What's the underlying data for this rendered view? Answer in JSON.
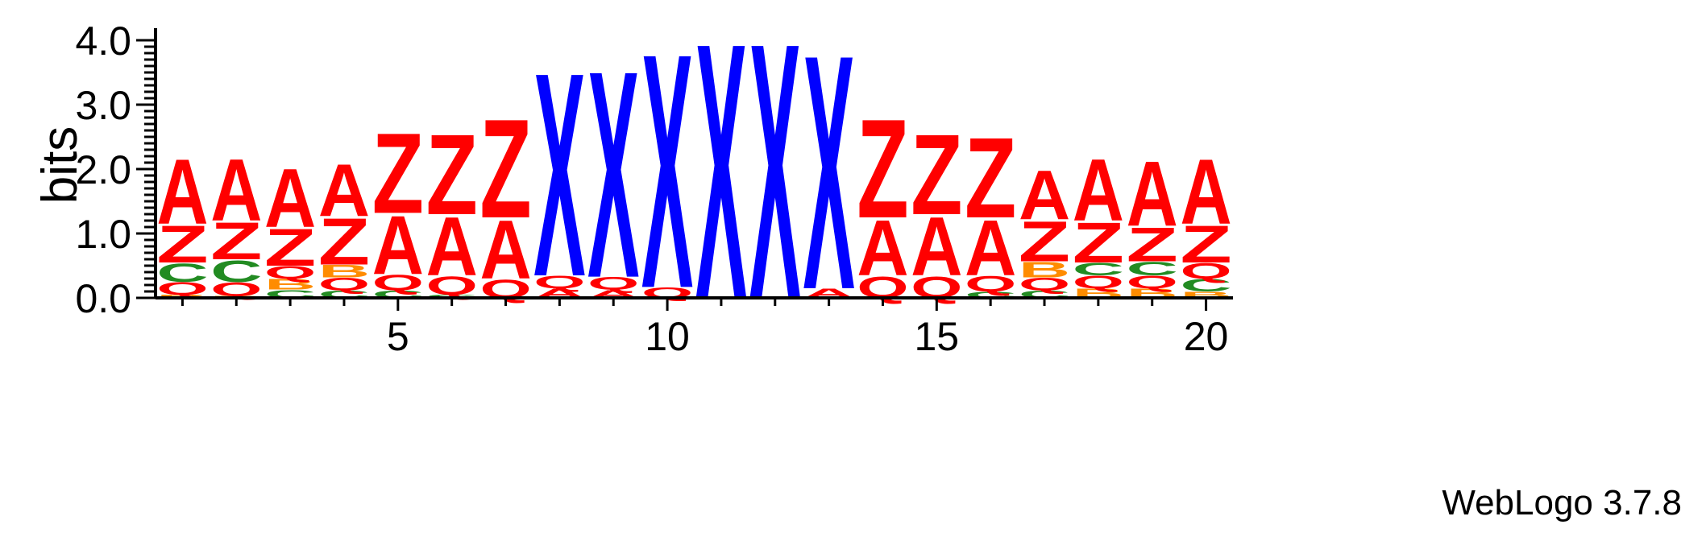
{
  "chart_data": {
    "type": "sequence-logo",
    "ylabel": "bits",
    "ylim": [
      0,
      4.0
    ],
    "y_ticks": [
      "0.0",
      "1.0",
      "2.0",
      "3.0",
      "4.0"
    ],
    "x_ticks": [
      "5",
      "10",
      "15",
      "20"
    ],
    "x_tick_values": [
      5,
      10,
      15,
      20
    ],
    "colors": {
      "A": "#ff0000",
      "Z": "#ff0000",
      "Q": "#ff0000",
      "X": "#0000ff",
      "C": "#228b22",
      "B": "#ff8c00"
    },
    "positions": [
      {
        "pos": 1,
        "stack": [
          [
            "B",
            0.05
          ],
          [
            "Q",
            0.2
          ],
          [
            "C",
            0.3
          ],
          [
            "Z",
            0.6
          ],
          [
            "A",
            1.05
          ]
        ]
      },
      {
        "pos": 2,
        "stack": [
          [
            "B",
            0.03
          ],
          [
            "Q",
            0.22
          ],
          [
            "C",
            0.35
          ],
          [
            "Z",
            0.6
          ],
          [
            "A",
            1.0
          ]
        ]
      },
      {
        "pos": 3,
        "stack": [
          [
            "C",
            0.13
          ],
          [
            "B",
            0.17
          ],
          [
            "Q",
            0.2
          ],
          [
            "Z",
            0.6
          ],
          [
            "A",
            0.95
          ]
        ]
      },
      {
        "pos": 4,
        "stack": [
          [
            "C",
            0.12
          ],
          [
            "Q",
            0.2
          ],
          [
            "B",
            0.2
          ],
          [
            "Z",
            0.75
          ],
          [
            "A",
            0.85
          ]
        ]
      },
      {
        "pos": 5,
        "stack": [
          [
            "C",
            0.12
          ],
          [
            "Q",
            0.25
          ],
          [
            "A",
            0.95
          ],
          [
            "Z",
            1.3
          ]
        ]
      },
      {
        "pos": 6,
        "stack": [
          [
            "C",
            0.05
          ],
          [
            "Q",
            0.3
          ],
          [
            "A",
            0.95
          ],
          [
            "Z",
            1.3
          ]
        ]
      },
      {
        "pos": 7,
        "stack": [
          [
            "Q",
            0.3
          ],
          [
            "A",
            0.95
          ],
          [
            "Z",
            1.6
          ]
        ]
      },
      {
        "pos": 8,
        "stack": [
          [
            "A",
            0.15
          ],
          [
            "Q",
            0.2
          ],
          [
            "X",
            3.3
          ]
        ]
      },
      {
        "pos": 9,
        "stack": [
          [
            "A",
            0.13
          ],
          [
            "Q",
            0.2
          ],
          [
            "X",
            3.35
          ]
        ]
      },
      {
        "pos": 10,
        "stack": [
          [
            "Q",
            0.17
          ],
          [
            "X",
            3.8
          ]
        ]
      },
      {
        "pos": 11,
        "stack": [
          [
            "X",
            4.15
          ]
        ]
      },
      {
        "pos": 12,
        "stack": [
          [
            "X",
            4.15
          ]
        ]
      },
      {
        "pos": 13,
        "stack": [
          [
            "A",
            0.15
          ],
          [
            "X",
            3.8
          ]
        ]
      },
      {
        "pos": 14,
        "stack": [
          [
            "Q",
            0.35
          ],
          [
            "A",
            0.9
          ],
          [
            "Z",
            1.6
          ]
        ]
      },
      {
        "pos": 15,
        "stack": [
          [
            "Q",
            0.35
          ],
          [
            "A",
            0.95
          ],
          [
            "Z",
            1.3
          ]
        ]
      },
      {
        "pos": 16,
        "stack": [
          [
            "C",
            0.1
          ],
          [
            "Q",
            0.25
          ],
          [
            "A",
            0.9
          ],
          [
            "Z",
            1.3
          ]
        ]
      },
      {
        "pos": 17,
        "stack": [
          [
            "C",
            0.12
          ],
          [
            "Q",
            0.2
          ],
          [
            "B",
            0.25
          ],
          [
            "Z",
            0.65
          ],
          [
            "A",
            0.8
          ]
        ]
      },
      {
        "pos": 18,
        "stack": [
          [
            "B",
            0.15
          ],
          [
            "Q",
            0.2
          ],
          [
            "C",
            0.2
          ],
          [
            "Z",
            0.65
          ],
          [
            "A",
            1.0
          ]
        ]
      },
      {
        "pos": 19,
        "stack": [
          [
            "B",
            0.15
          ],
          [
            "Q",
            0.2
          ],
          [
            "C",
            0.22
          ],
          [
            "Z",
            0.55
          ],
          [
            "A",
            1.05
          ]
        ]
      },
      {
        "pos": 20,
        "stack": [
          [
            "B",
            0.1
          ],
          [
            "C",
            0.2
          ],
          [
            "Q",
            0.25
          ],
          [
            "Z",
            0.6
          ],
          [
            "A",
            1.05
          ]
        ]
      }
    ]
  },
  "footer": {
    "credit": "WebLogo 3.7.8"
  }
}
